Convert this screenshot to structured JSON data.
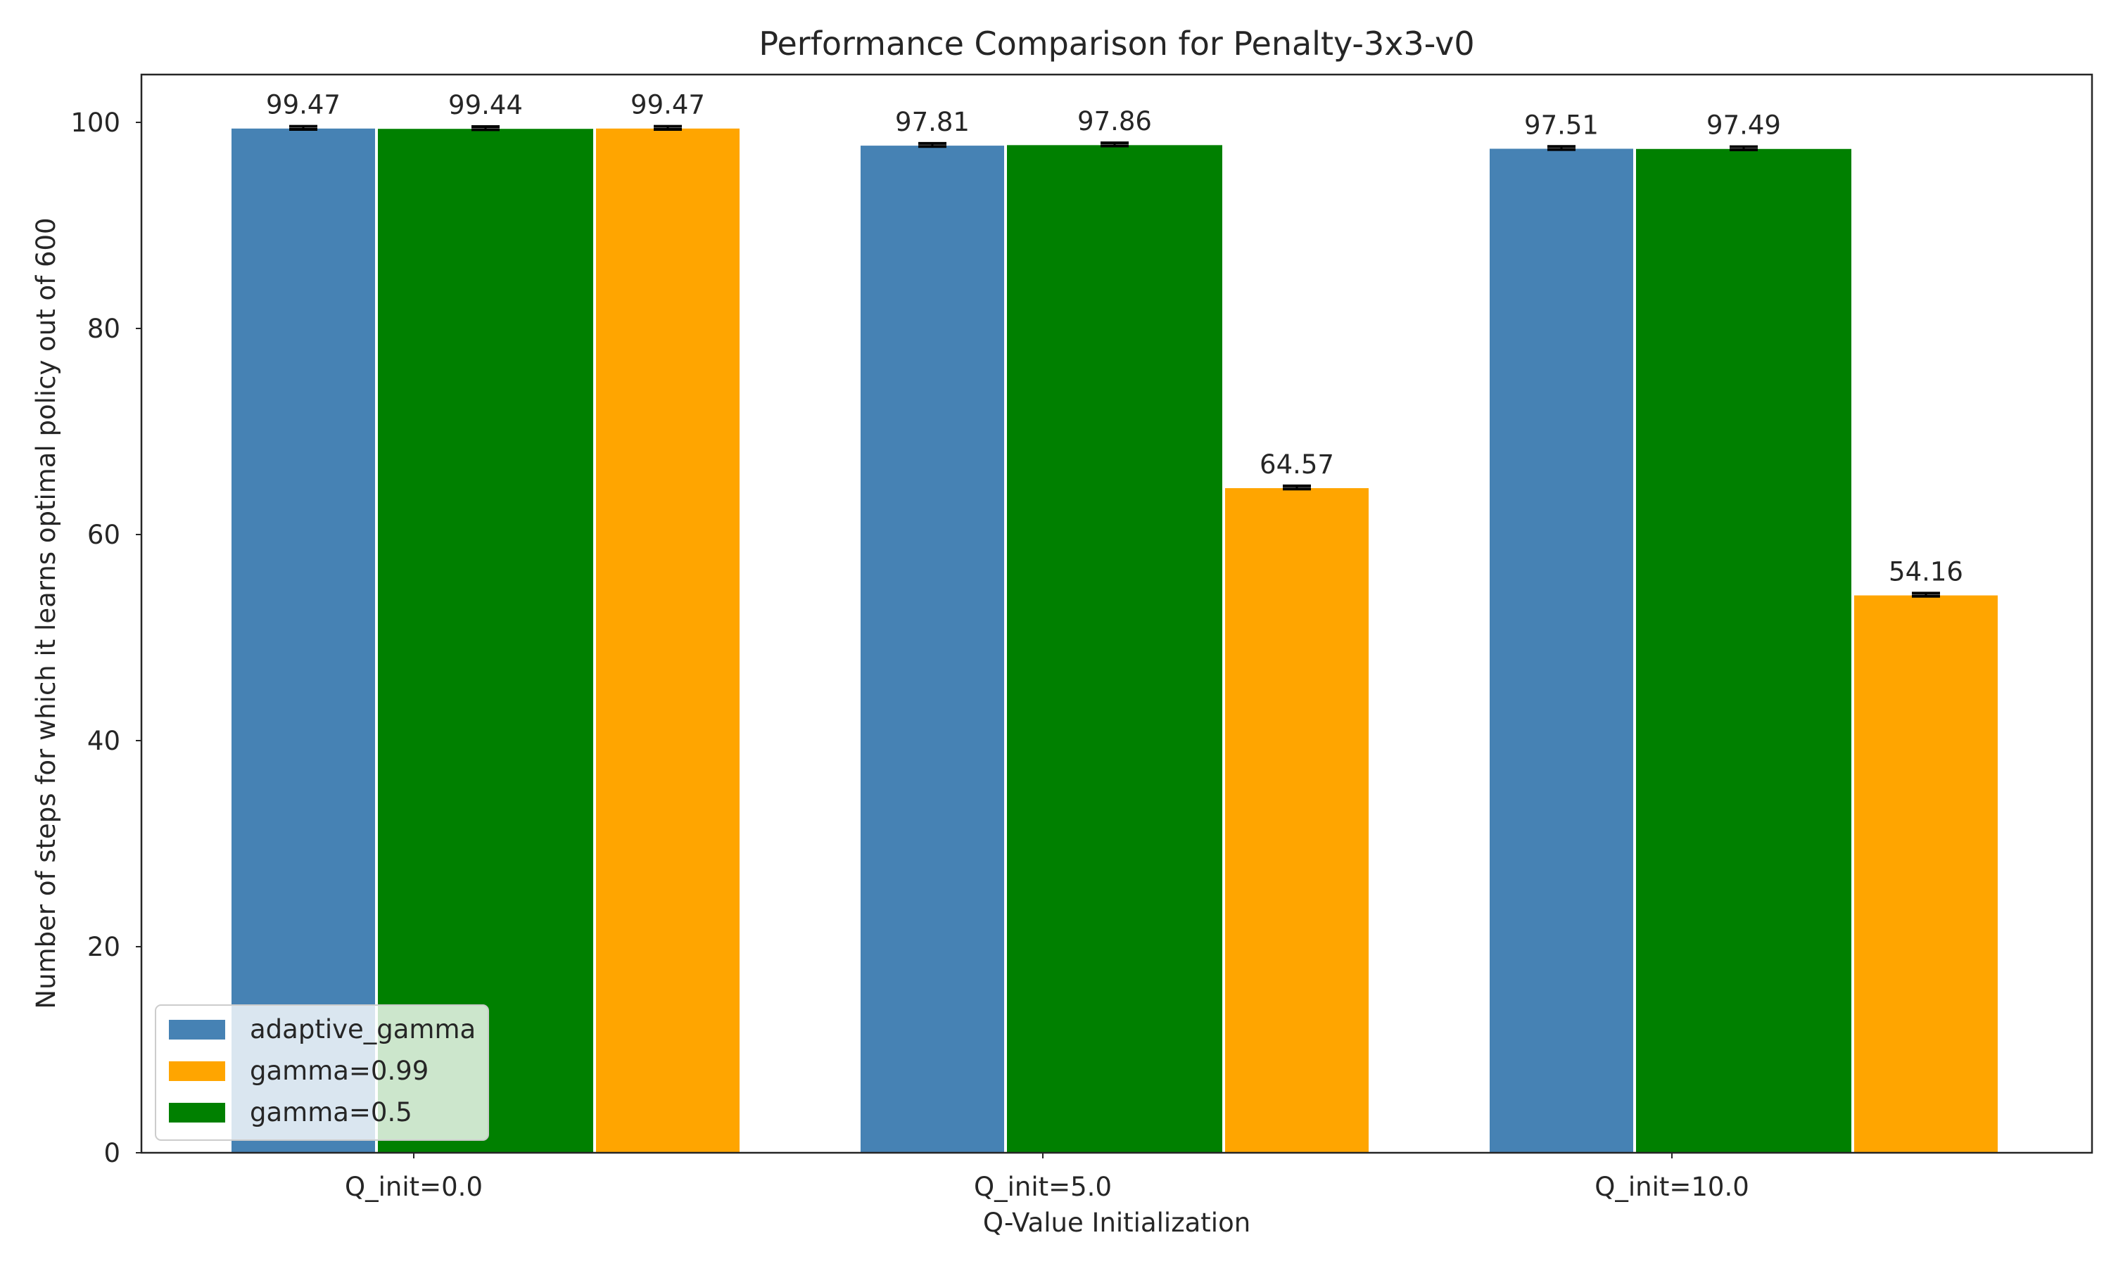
{
  "chart_data": {
    "type": "bar",
    "title": "Performance Comparison for Penalty-3x3-v0",
    "xlabel": "Q-Value Initialization",
    "ylabel": "Number of steps for which it learns optimal policy out of 600",
    "categories": [
      "Q_init=0.0",
      "Q_init=5.0",
      "Q_init=10.0"
    ],
    "ylim": [
      0,
      104
    ],
    "yticks": [
      0,
      20,
      40,
      60,
      80,
      100
    ],
    "grid": false,
    "legend_position": "lower-left",
    "series": [
      {
        "name": "adaptive_gamma",
        "color": "#4682b4",
        "values": [
          99.47,
          97.81,
          97.51
        ],
        "errors": [
          0.15,
          0.15,
          0.15
        ],
        "labels": [
          "99.47",
          "97.81",
          "97.51"
        ]
      },
      {
        "name": "gamma=0.5",
        "color": "#008000",
        "values": [
          99.44,
          97.86,
          97.49
        ],
        "errors": [
          0.15,
          0.15,
          0.15
        ],
        "labels": [
          "99.44",
          "97.86",
          "97.49"
        ]
      },
      {
        "name": "gamma=0.99",
        "color": "#ffa500",
        "values": [
          99.47,
          64.57,
          54.16
        ],
        "errors": [
          0.15,
          0.15,
          0.15
        ],
        "labels": [
          "99.47",
          "64.57",
          "54.16"
        ]
      }
    ],
    "legend_order": [
      "adaptive_gamma",
      "gamma=0.99",
      "gamma=0.5"
    ]
  }
}
